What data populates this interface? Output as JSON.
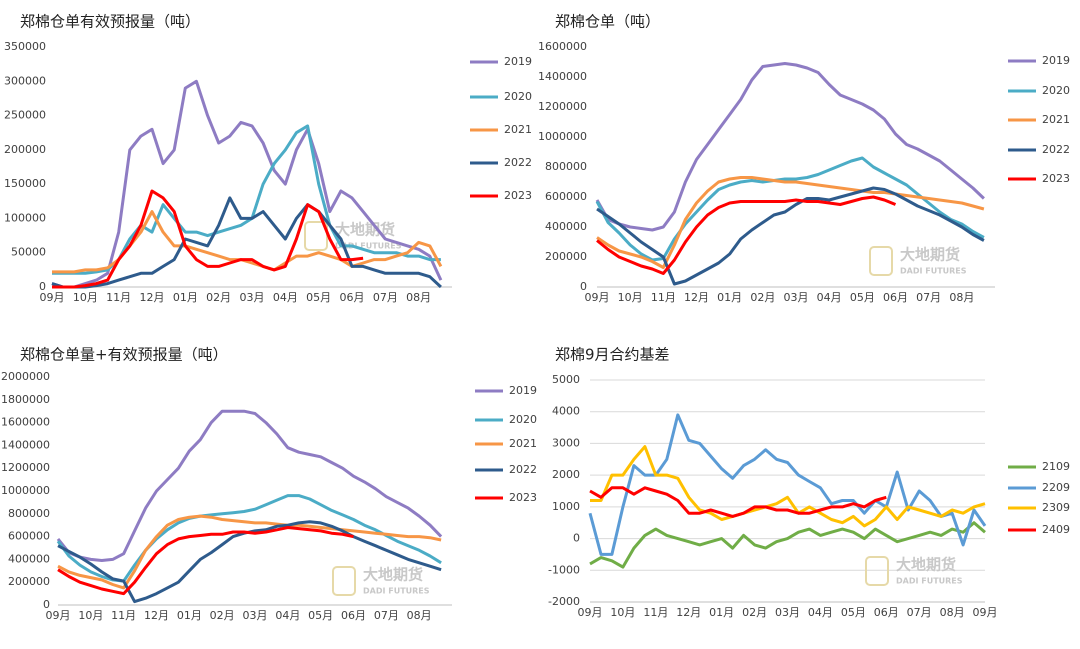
{
  "chart_data": [
    {
      "type": "line",
      "title": "郑棉仓单有效预报量（吨）",
      "watermark": "大地期货",
      "watermark_sub": "DADI FUTURES",
      "categories": [
        "09月",
        null,
        null,
        "10月",
        null,
        null,
        "11月",
        null,
        null,
        "12月",
        null,
        null,
        "01月",
        null,
        null,
        "02月",
        null,
        null,
        "03月",
        null,
        null,
        "04月",
        null,
        null,
        "05月",
        null,
        null,
        "06月",
        null,
        null,
        "07月",
        null,
        null,
        "08月",
        null,
        null
      ],
      "ylim": [
        0,
        350000
      ],
      "yticks": [
        0,
        50000,
        100000,
        150000,
        200000,
        250000,
        300000,
        350000
      ],
      "grid": false,
      "series": [
        {
          "name": "2019",
          "color": "#8e7cc3",
          "values": [
            5000,
            0,
            0,
            5000,
            10000,
            20000,
            80000,
            200000,
            220000,
            230000,
            180000,
            200000,
            290000,
            300000,
            250000,
            210000,
            220000,
            240000,
            235000,
            210000,
            170000,
            150000,
            200000,
            230000,
            180000,
            110000,
            140000,
            130000,
            110000,
            90000,
            70000,
            65000,
            60000,
            55000,
            45000,
            10000
          ]
        },
        {
          "name": "2020",
          "color": "#4bacc6",
          "values": [
            20000,
            20000,
            20000,
            20000,
            22000,
            25000,
            40000,
            70000,
            90000,
            80000,
            120000,
            100000,
            80000,
            80000,
            75000,
            80000,
            85000,
            90000,
            100000,
            150000,
            180000,
            200000,
            225000,
            235000,
            150000,
            90000,
            60000,
            60000,
            55000,
            50000,
            50000,
            50000,
            45000,
            45000,
            40000,
            40000
          ]
        },
        {
          "name": "2021",
          "color": "#f79646",
          "values": [
            22000,
            22000,
            22000,
            25000,
            25000,
            28000,
            40000,
            60000,
            80000,
            110000,
            80000,
            60000,
            60000,
            55000,
            50000,
            45000,
            40000,
            40000,
            35000,
            30000,
            25000,
            35000,
            45000,
            45000,
            50000,
            45000,
            40000,
            30000,
            35000,
            40000,
            40000,
            45000,
            50000,
            65000,
            60000,
            30000
          ]
        },
        {
          "name": "2022",
          "color": "#2e5b8c",
          "values": [
            5000,
            0,
            0,
            0,
            2000,
            5000,
            10000,
            15000,
            20000,
            20000,
            30000,
            40000,
            70000,
            65000,
            60000,
            90000,
            130000,
            100000,
            100000,
            110000,
            90000,
            70000,
            100000,
            120000,
            110000,
            90000,
            70000,
            30000,
            30000,
            25000,
            20000,
            20000,
            20000,
            20000,
            15000,
            0
          ]
        },
        {
          "name": "2023",
          "color": "#ff0000",
          "values": [
            0,
            0,
            0,
            2000,
            5000,
            10000,
            40000,
            60000,
            90000,
            140000,
            130000,
            110000,
            60000,
            40000,
            30000,
            30000,
            35000,
            40000,
            40000,
            30000,
            25000,
            30000,
            70000,
            120000,
            110000,
            70000,
            40000,
            40000,
            42000,
            null,
            null,
            null,
            null,
            null,
            null,
            null
          ]
        }
      ]
    },
    {
      "type": "line",
      "title": "郑棉仓单（吨）",
      "watermark": "大地期货",
      "watermark_sub": "DADI FUTURES",
      "categories": [
        "09月",
        null,
        null,
        "10月",
        null,
        null,
        "11月",
        null,
        null,
        "12月",
        null,
        null,
        "01月",
        null,
        null,
        "02月",
        null,
        null,
        "03月",
        null,
        null,
        "04月",
        null,
        null,
        "05月",
        null,
        null,
        "06月",
        null,
        null,
        "07月",
        null,
        null,
        "08月",
        null,
        null
      ],
      "ylim": [
        0,
        1600000
      ],
      "yticks": [
        0,
        200000,
        400000,
        600000,
        800000,
        1000000,
        1200000,
        1400000,
        1600000
      ],
      "grid": false,
      "series": [
        {
          "name": "2019",
          "color": "#8e7cc3",
          "values": [
            580000,
            450000,
            420000,
            400000,
            390000,
            380000,
            400000,
            500000,
            700000,
            850000,
            950000,
            1050000,
            1150000,
            1250000,
            1380000,
            1470000,
            1480000,
            1490000,
            1480000,
            1460000,
            1430000,
            1350000,
            1280000,
            1250000,
            1220000,
            1180000,
            1120000,
            1020000,
            950000,
            920000,
            880000,
            840000,
            780000,
            720000,
            660000,
            590000
          ]
        },
        {
          "name": "2020",
          "color": "#4bacc6",
          "values": [
            570000,
            430000,
            360000,
            280000,
            220000,
            180000,
            190000,
            320000,
            420000,
            500000,
            580000,
            650000,
            680000,
            700000,
            710000,
            700000,
            710000,
            720000,
            720000,
            730000,
            750000,
            780000,
            810000,
            840000,
            860000,
            800000,
            760000,
            720000,
            680000,
            620000,
            560000,
            500000,
            450000,
            420000,
            370000,
            330000
          ]
        },
        {
          "name": "2021",
          "color": "#f79646",
          "values": [
            330000,
            280000,
            240000,
            220000,
            200000,
            170000,
            130000,
            280000,
            450000,
            560000,
            640000,
            700000,
            720000,
            730000,
            730000,
            720000,
            710000,
            700000,
            700000,
            690000,
            680000,
            670000,
            660000,
            650000,
            640000,
            630000,
            630000,
            620000,
            610000,
            600000,
            590000,
            580000,
            570000,
            560000,
            540000,
            520000
          ]
        },
        {
          "name": "2022",
          "color": "#2e5b8c",
          "values": [
            520000,
            470000,
            420000,
            360000,
            300000,
            250000,
            200000,
            20000,
            40000,
            80000,
            120000,
            160000,
            220000,
            320000,
            380000,
            430000,
            480000,
            500000,
            550000,
            590000,
            590000,
            580000,
            600000,
            620000,
            640000,
            660000,
            650000,
            620000,
            580000,
            540000,
            510000,
            480000,
            440000,
            400000,
            350000,
            310000
          ]
        },
        {
          "name": "2023",
          "color": "#ff0000",
          "values": [
            310000,
            250000,
            200000,
            170000,
            140000,
            120000,
            90000,
            180000,
            300000,
            400000,
            480000,
            530000,
            560000,
            570000,
            570000,
            570000,
            570000,
            570000,
            580000,
            570000,
            570000,
            560000,
            550000,
            570000,
            590000,
            600000,
            580000,
            550000,
            null,
            null,
            null,
            null,
            null,
            null,
            null,
            null
          ]
        }
      ]
    },
    {
      "type": "line",
      "title": "郑棉仓单量+有效预报量（吨）",
      "watermark": "大地期货",
      "watermark_sub": "DADI FUTURES",
      "categories": [
        "09月",
        null,
        null,
        "10月",
        null,
        null,
        "11月",
        null,
        null,
        "12月",
        null,
        null,
        "01月",
        null,
        null,
        "02月",
        null,
        null,
        "03月",
        null,
        null,
        "04月",
        null,
        null,
        "05月",
        null,
        null,
        "06月",
        null,
        null,
        "07月",
        null,
        null,
        "08月",
        null,
        null
      ],
      "ylim": [
        0,
        2000000
      ],
      "yticks": [
        0,
        200000,
        400000,
        600000,
        800000,
        1000000,
        1200000,
        1400000,
        1600000,
        1800000,
        2000000
      ],
      "grid": false,
      "series": [
        {
          "name": "2019",
          "color": "#8e7cc3",
          "values": [
            580000,
            460000,
            420000,
            400000,
            390000,
            400000,
            450000,
            650000,
            850000,
            1000000,
            1100000,
            1200000,
            1350000,
            1450000,
            1600000,
            1700000,
            1700000,
            1700000,
            1680000,
            1600000,
            1500000,
            1380000,
            1340000,
            1320000,
            1300000,
            1250000,
            1200000,
            1130000,
            1080000,
            1020000,
            950000,
            900000,
            850000,
            780000,
            700000,
            600000
          ]
        },
        {
          "name": "2020",
          "color": "#4bacc6",
          "values": [
            560000,
            430000,
            350000,
            290000,
            250000,
            220000,
            210000,
            350000,
            480000,
            580000,
            660000,
            720000,
            760000,
            780000,
            790000,
            800000,
            810000,
            820000,
            840000,
            880000,
            920000,
            960000,
            960000,
            930000,
            880000,
            830000,
            790000,
            750000,
            700000,
            660000,
            610000,
            560000,
            520000,
            480000,
            430000,
            370000
          ]
        },
        {
          "name": "2021",
          "color": "#f79646",
          "values": [
            340000,
            290000,
            260000,
            240000,
            220000,
            180000,
            150000,
            300000,
            480000,
            600000,
            700000,
            750000,
            770000,
            780000,
            770000,
            750000,
            740000,
            730000,
            720000,
            720000,
            710000,
            700000,
            700000,
            690000,
            680000,
            670000,
            660000,
            650000,
            640000,
            630000,
            620000,
            610000,
            600000,
            600000,
            590000,
            570000
          ]
        },
        {
          "name": "2022",
          "color": "#2e5b8c",
          "values": [
            520000,
            470000,
            420000,
            360000,
            290000,
            230000,
            210000,
            30000,
            60000,
            100000,
            150000,
            200000,
            300000,
            400000,
            460000,
            530000,
            600000,
            630000,
            650000,
            660000,
            690000,
            700000,
            720000,
            730000,
            720000,
            690000,
            650000,
            600000,
            560000,
            520000,
            480000,
            440000,
            400000,
            370000,
            340000,
            310000
          ]
        },
        {
          "name": "2023",
          "color": "#ff0000",
          "values": [
            310000,
            250000,
            200000,
            170000,
            140000,
            120000,
            100000,
            200000,
            330000,
            450000,
            530000,
            580000,
            600000,
            610000,
            620000,
            620000,
            640000,
            640000,
            630000,
            640000,
            660000,
            680000,
            670000,
            660000,
            650000,
            630000,
            620000,
            600000,
            null,
            null,
            null,
            null,
            null,
            null,
            null,
            null
          ]
        }
      ]
    },
    {
      "type": "line",
      "title": "郑棉9月合约基差",
      "watermark": "大地期货",
      "watermark_sub": "DADI FUTURES",
      "categories": [
        "09月",
        null,
        null,
        "10月",
        null,
        null,
        "11月",
        null,
        null,
        "12月",
        null,
        null,
        "01月",
        null,
        null,
        "02月",
        null,
        null,
        "03月",
        null,
        null,
        "04月",
        null,
        null,
        "05月",
        null,
        null,
        "06月",
        null,
        null,
        "07月",
        null,
        null,
        "08月",
        null,
        null,
        "09月"
      ],
      "ylim": [
        -2000,
        5000
      ],
      "yticks": [
        -2000,
        -1000,
        0,
        1000,
        2000,
        3000,
        4000,
        5000
      ],
      "grid": true,
      "series": [
        {
          "name": "2109",
          "color": "#70ad47",
          "values": [
            -800,
            -600,
            -700,
            -900,
            -300,
            100,
            300,
            100,
            0,
            -100,
            -200,
            -100,
            0,
            -300,
            100,
            -200,
            -300,
            -100,
            0,
            200,
            300,
            100,
            200,
            300,
            200,
            0,
            300,
            100,
            -100,
            0,
            100,
            200,
            100,
            300,
            200,
            500,
            200
          ]
        },
        {
          "name": "2209",
          "color": "#5b9bd5",
          "values": [
            800,
            -500,
            -500,
            1000,
            2300,
            2000,
            2000,
            2500,
            3900,
            3100,
            3000,
            2600,
            2200,
            1900,
            2300,
            2500,
            2800,
            2500,
            2400,
            2000,
            1800,
            1600,
            1100,
            1200,
            1200,
            800,
            1200,
            1000,
            2100,
            900,
            1500,
            1200,
            700,
            800,
            -200,
            900,
            400
          ]
        },
        {
          "name": "2309",
          "color": "#ffc000",
          "values": [
            1200,
            1200,
            2000,
            2000,
            2500,
            2900,
            2000,
            2000,
            1900,
            1300,
            900,
            800,
            600,
            700,
            800,
            900,
            1000,
            1100,
            1300,
            800,
            1000,
            800,
            600,
            500,
            700,
            400,
            600,
            1000,
            600,
            1000,
            900,
            800,
            700,
            900,
            800,
            1000,
            1100
          ]
        },
        {
          "name": "2409",
          "color": "#ff0000",
          "values": [
            1500,
            1300,
            1600,
            1600,
            1400,
            1600,
            1500,
            1400,
            1200,
            800,
            800,
            900,
            800,
            700,
            800,
            1000,
            1000,
            900,
            900,
            800,
            800,
            900,
            1000,
            1000,
            1100,
            1000,
            1200,
            1300,
            null,
            null,
            null,
            null,
            null,
            null,
            null,
            null,
            null
          ]
        }
      ]
    }
  ]
}
